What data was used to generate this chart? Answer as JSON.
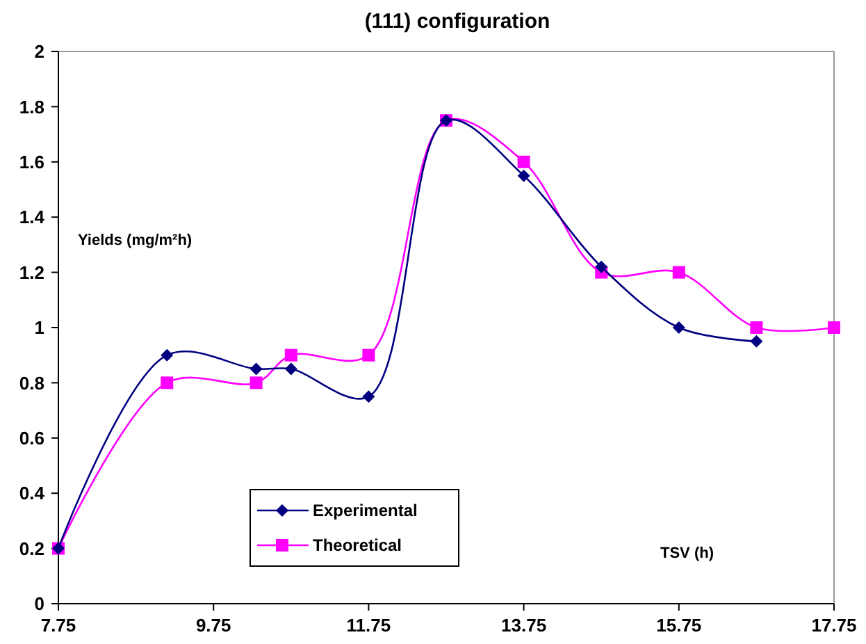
{
  "chart_data": {
    "type": "line",
    "title": "(111) configuration",
    "xlabel": "TSV (h)",
    "ylabel": "Yields (mg/m²h)",
    "xlim": [
      7.75,
      17.75
    ],
    "xticks": [
      7.75,
      9.75,
      11.75,
      13.75,
      15.75,
      17.75
    ],
    "ylim": [
      0,
      2
    ],
    "yticks": [
      0,
      0.2,
      0.4,
      0.6,
      0.8,
      1,
      1.2,
      1.4,
      1.6,
      1.8,
      2
    ],
    "grid": false,
    "legend": "bottom left",
    "line_style": "solid",
    "series": [
      {
        "name": "Experimental",
        "color": "#000080",
        "marker": "diamond",
        "x": [
          7.75,
          9.15,
          10.3,
          10.75,
          11.75,
          12.75,
          13.75,
          14.75,
          15.75,
          16.75
        ],
        "values": [
          0.2,
          0.9,
          0.85,
          0.85,
          0.75,
          1.75,
          1.55,
          1.22,
          1.0,
          0.95
        ]
      },
      {
        "name": "Theoretical",
        "color": "#ff00ff",
        "marker": "square",
        "x": [
          7.75,
          9.15,
          10.3,
          10.75,
          11.75,
          12.75,
          13.75,
          14.75,
          15.75,
          16.75,
          17.75
        ],
        "values": [
          0.2,
          0.8,
          0.8,
          0.9,
          0.9,
          1.75,
          1.6,
          1.2,
          1.2,
          1.0,
          1.0
        ]
      }
    ]
  }
}
